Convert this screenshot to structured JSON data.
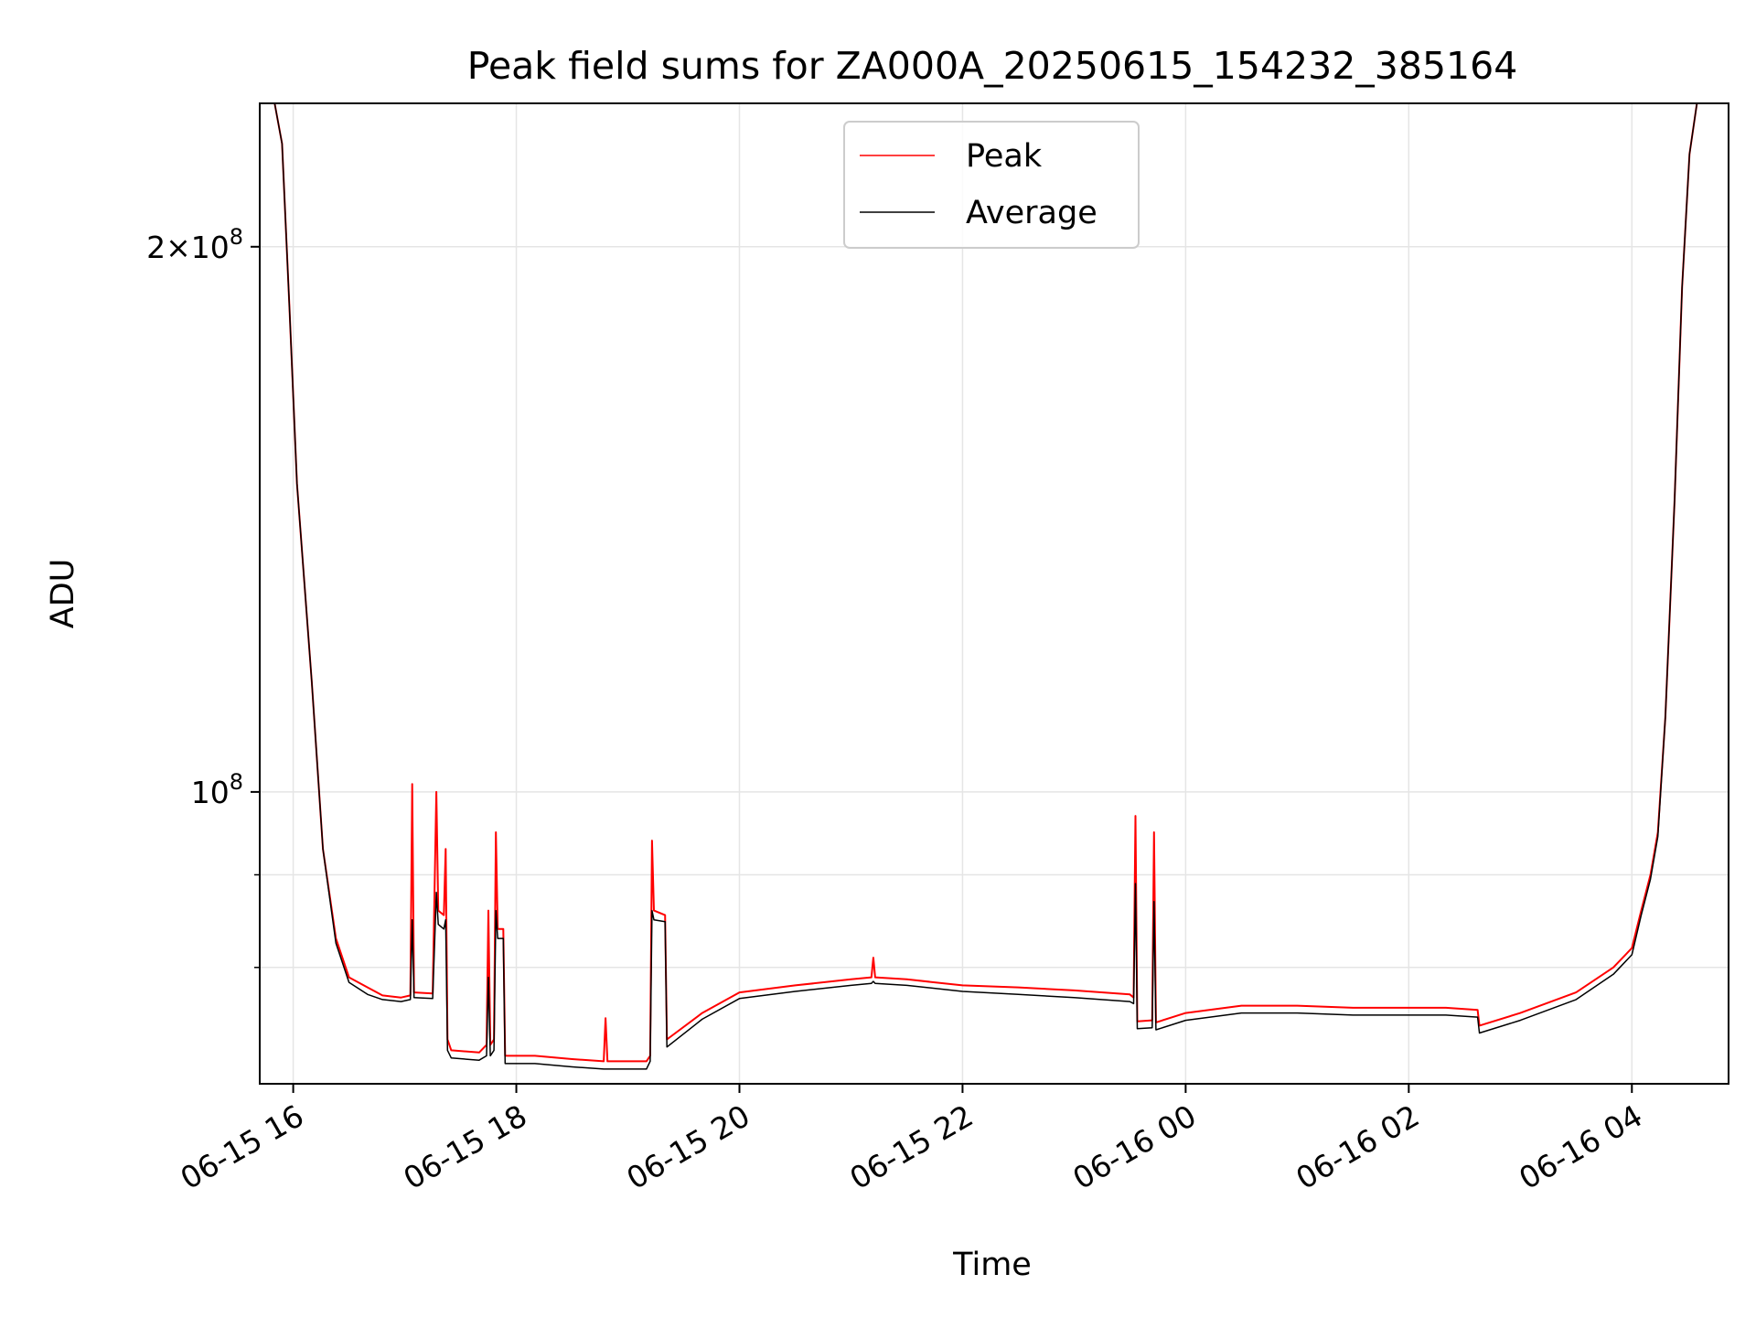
{
  "chart_data": {
    "type": "line",
    "title": "Peak field sums for ZA000A_20250615_154232_385164",
    "xlabel": "Time",
    "ylabel": "ADU",
    "x_type": "datetime",
    "xlim": [
      "2025-06-15 15:42",
      "2025-06-16 04:52"
    ],
    "ylim": [
      69000000,
      240000000
    ],
    "y_scale": "log",
    "grid": true,
    "legend_position": "top-center",
    "x_ticks": [
      {
        "t": "2025-06-15 16:00",
        "label": "06-15 16"
      },
      {
        "t": "2025-06-15 18:00",
        "label": "06-15 18"
      },
      {
        "t": "2025-06-15 20:00",
        "label": "06-15 20"
      },
      {
        "t": "2025-06-15 22:00",
        "label": "06-15 22"
      },
      {
        "t": "2025-06-16 00:00",
        "label": "06-16 00"
      },
      {
        "t": "2025-06-16 02:00",
        "label": "06-16 02"
      },
      {
        "t": "2025-06-16 04:00",
        "label": "06-16 04"
      }
    ],
    "y_ticks_major": [
      {
        "value": 200000000,
        "label_base": "2×10",
        "label_exp": "8"
      },
      {
        "value": 100000000,
        "label_base": "10",
        "label_exp": "8"
      }
    ],
    "y_ticks_minor": [
      80000000,
      90000000
    ],
    "series": [
      {
        "name": "Peak",
        "color": "#ff0000",
        "points": [
          [
            "2025-06-15 15:50",
            240000000
          ],
          [
            "2025-06-15 15:54",
            228000000
          ],
          [
            "2025-06-15 15:58",
            185000000
          ],
          [
            "2025-06-15 16:02",
            148000000
          ],
          [
            "2025-06-15 16:10",
            115000000
          ],
          [
            "2025-06-15 16:16",
            93000000
          ],
          [
            "2025-06-15 16:23",
            83000000
          ],
          [
            "2025-06-15 16:30",
            79000000
          ],
          [
            "2025-06-15 16:40",
            78000000
          ],
          [
            "2025-06-15 16:48",
            77200000
          ],
          [
            "2025-06-15 16:58",
            77000000
          ],
          [
            "2025-06-15 17:03",
            77200000
          ],
          [
            "2025-06-15 17:04",
            101000000
          ],
          [
            "2025-06-15 17:05",
            77500000
          ],
          [
            "2025-06-15 17:15",
            77400000
          ],
          [
            "2025-06-15 17:17",
            100000000
          ],
          [
            "2025-06-15 17:18",
            86000000
          ],
          [
            "2025-06-15 17:21",
            85500000
          ],
          [
            "2025-06-15 17:22",
            93000000
          ],
          [
            "2025-06-15 17:23",
            73000000
          ],
          [
            "2025-06-15 17:25",
            72000000
          ],
          [
            "2025-06-15 17:40",
            71800000
          ],
          [
            "2025-06-15 17:44",
            72500000
          ],
          [
            "2025-06-15 17:45",
            86000000
          ],
          [
            "2025-06-15 17:46",
            72500000
          ],
          [
            "2025-06-15 17:48",
            73000000
          ],
          [
            "2025-06-15 17:49",
            95000000
          ],
          [
            "2025-06-15 17:50",
            84000000
          ],
          [
            "2025-06-15 17:53",
            84000000
          ],
          [
            "2025-06-15 17:54",
            71500000
          ],
          [
            "2025-06-15 18:10",
            71500000
          ],
          [
            "2025-06-15 18:30",
            71200000
          ],
          [
            "2025-06-15 18:47",
            71000000
          ],
          [
            "2025-06-15 18:48",
            75000000
          ],
          [
            "2025-06-15 18:49",
            71000000
          ],
          [
            "2025-06-15 19:10",
            71000000
          ],
          [
            "2025-06-15 19:12",
            71500000
          ],
          [
            "2025-06-15 19:13",
            94000000
          ],
          [
            "2025-06-15 19:14",
            86000000
          ],
          [
            "2025-06-15 19:20",
            85500000
          ],
          [
            "2025-06-15 19:21",
            73000000
          ],
          [
            "2025-06-15 19:40",
            75500000
          ],
          [
            "2025-06-15 20:00",
            77500000
          ],
          [
            "2025-06-15 20:30",
            78200000
          ],
          [
            "2025-06-15 21:00",
            78800000
          ],
          [
            "2025-06-15 21:11",
            79000000
          ],
          [
            "2025-06-15 21:12",
            81000000
          ],
          [
            "2025-06-15 21:13",
            79000000
          ],
          [
            "2025-06-15 21:30",
            78800000
          ],
          [
            "2025-06-15 22:00",
            78200000
          ],
          [
            "2025-06-15 22:30",
            78000000
          ],
          [
            "2025-06-15 23:00",
            77700000
          ],
          [
            "2025-06-15 23:30",
            77300000
          ],
          [
            "2025-06-15 23:32",
            77000000
          ],
          [
            "2025-06-15 23:33",
            97000000
          ],
          [
            "2025-06-15 23:34",
            74700000
          ],
          [
            "2025-06-15 23:42",
            74800000
          ],
          [
            "2025-06-15 23:43",
            95000000
          ],
          [
            "2025-06-15 23:44",
            74600000
          ],
          [
            "2025-06-16 00:00",
            75500000
          ],
          [
            "2025-06-16 00:30",
            76200000
          ],
          [
            "2025-06-16 01:00",
            76200000
          ],
          [
            "2025-06-16 01:30",
            76000000
          ],
          [
            "2025-06-16 02:00",
            76000000
          ],
          [
            "2025-06-16 02:20",
            76000000
          ],
          [
            "2025-06-16 02:37",
            75800000
          ],
          [
            "2025-06-16 02:38",
            74300000
          ],
          [
            "2025-06-16 03:00",
            75500000
          ],
          [
            "2025-06-16 03:30",
            77500000
          ],
          [
            "2025-06-16 03:50",
            80000000
          ],
          [
            "2025-06-16 04:00",
            82000000
          ],
          [
            "2025-06-16 04:05",
            86000000
          ],
          [
            "2025-06-16 04:10",
            90000000
          ],
          [
            "2025-06-16 04:14",
            95000000
          ],
          [
            "2025-06-16 04:18",
            110000000
          ],
          [
            "2025-06-16 04:23",
            145000000
          ],
          [
            "2025-06-16 04:27",
            190000000
          ],
          [
            "2025-06-16 04:31",
            225000000
          ],
          [
            "2025-06-16 04:35",
            240000000
          ],
          [
            "2025-06-16 04:40",
            240000000
          ]
        ]
      },
      {
        "name": "Average",
        "color": "#000000",
        "points": [
          [
            "2025-06-15 15:50",
            240000000
          ],
          [
            "2025-06-15 15:54",
            228000000
          ],
          [
            "2025-06-15 15:58",
            185000000
          ],
          [
            "2025-06-15 16:02",
            148000000
          ],
          [
            "2025-06-15 16:10",
            115000000
          ],
          [
            "2025-06-15 16:16",
            93000000
          ],
          [
            "2025-06-15 16:23",
            82500000
          ],
          [
            "2025-06-15 16:30",
            78500000
          ],
          [
            "2025-06-15 16:40",
            77300000
          ],
          [
            "2025-06-15 16:48",
            76800000
          ],
          [
            "2025-06-15 16:58",
            76600000
          ],
          [
            "2025-06-15 17:03",
            76800000
          ],
          [
            "2025-06-15 17:04",
            85000000
          ],
          [
            "2025-06-15 17:05",
            77000000
          ],
          [
            "2025-06-15 17:15",
            76900000
          ],
          [
            "2025-06-15 17:17",
            88000000
          ],
          [
            "2025-06-15 17:18",
            84500000
          ],
          [
            "2025-06-15 17:21",
            84000000
          ],
          [
            "2025-06-15 17:22",
            85000000
          ],
          [
            "2025-06-15 17:23",
            72000000
          ],
          [
            "2025-06-15 17:25",
            71300000
          ],
          [
            "2025-06-15 17:40",
            71100000
          ],
          [
            "2025-06-15 17:44",
            71500000
          ],
          [
            "2025-06-15 17:45",
            79000000
          ],
          [
            "2025-06-15 17:46",
            71500000
          ],
          [
            "2025-06-15 17:48",
            72000000
          ],
          [
            "2025-06-15 17:49",
            86000000
          ],
          [
            "2025-06-15 17:50",
            83000000
          ],
          [
            "2025-06-15 17:53",
            83000000
          ],
          [
            "2025-06-15 17:54",
            70800000
          ],
          [
            "2025-06-15 18:10",
            70800000
          ],
          [
            "2025-06-15 18:30",
            70500000
          ],
          [
            "2025-06-15 18:47",
            70300000
          ],
          [
            "2025-06-15 18:48",
            70300000
          ],
          [
            "2025-06-15 18:49",
            70300000
          ],
          [
            "2025-06-15 19:10",
            70300000
          ],
          [
            "2025-06-15 19:12",
            71000000
          ],
          [
            "2025-06-15 19:13",
            86000000
          ],
          [
            "2025-06-15 19:14",
            85000000
          ],
          [
            "2025-06-15 19:20",
            84800000
          ],
          [
            "2025-06-15 19:21",
            72300000
          ],
          [
            "2025-06-15 19:40",
            74900000
          ],
          [
            "2025-06-15 20:00",
            76900000
          ],
          [
            "2025-06-15 20:30",
            77600000
          ],
          [
            "2025-06-15 21:00",
            78200000
          ],
          [
            "2025-06-15 21:11",
            78400000
          ],
          [
            "2025-06-15 21:12",
            78600000
          ],
          [
            "2025-06-15 21:13",
            78400000
          ],
          [
            "2025-06-15 21:30",
            78200000
          ],
          [
            "2025-06-15 22:00",
            77600000
          ],
          [
            "2025-06-15 22:30",
            77300000
          ],
          [
            "2025-06-15 23:00",
            77000000
          ],
          [
            "2025-06-15 23:30",
            76600000
          ],
          [
            "2025-06-15 23:32",
            76400000
          ],
          [
            "2025-06-15 23:33",
            89000000
          ],
          [
            "2025-06-15 23:34",
            74000000
          ],
          [
            "2025-06-15 23:42",
            74100000
          ],
          [
            "2025-06-15 23:43",
            87000000
          ],
          [
            "2025-06-15 23:44",
            73900000
          ],
          [
            "2025-06-16 00:00",
            74800000
          ],
          [
            "2025-06-16 00:30",
            75500000
          ],
          [
            "2025-06-16 01:00",
            75500000
          ],
          [
            "2025-06-16 01:30",
            75300000
          ],
          [
            "2025-06-16 02:00",
            75300000
          ],
          [
            "2025-06-16 02:20",
            75300000
          ],
          [
            "2025-06-16 02:37",
            75100000
          ],
          [
            "2025-06-16 02:38",
            73600000
          ],
          [
            "2025-06-16 03:00",
            74800000
          ],
          [
            "2025-06-16 03:30",
            76800000
          ],
          [
            "2025-06-16 03:50",
            79300000
          ],
          [
            "2025-06-16 04:00",
            81300000
          ],
          [
            "2025-06-16 04:05",
            85500000
          ],
          [
            "2025-06-16 04:10",
            89500000
          ],
          [
            "2025-06-16 04:14",
            94500000
          ],
          [
            "2025-06-16 04:18",
            110000000
          ],
          [
            "2025-06-16 04:23",
            145000000
          ],
          [
            "2025-06-16 04:27",
            190000000
          ],
          [
            "2025-06-16 04:31",
            225000000
          ],
          [
            "2025-06-16 04:35",
            240000000
          ],
          [
            "2025-06-16 04:40",
            240000000
          ]
        ]
      }
    ]
  }
}
